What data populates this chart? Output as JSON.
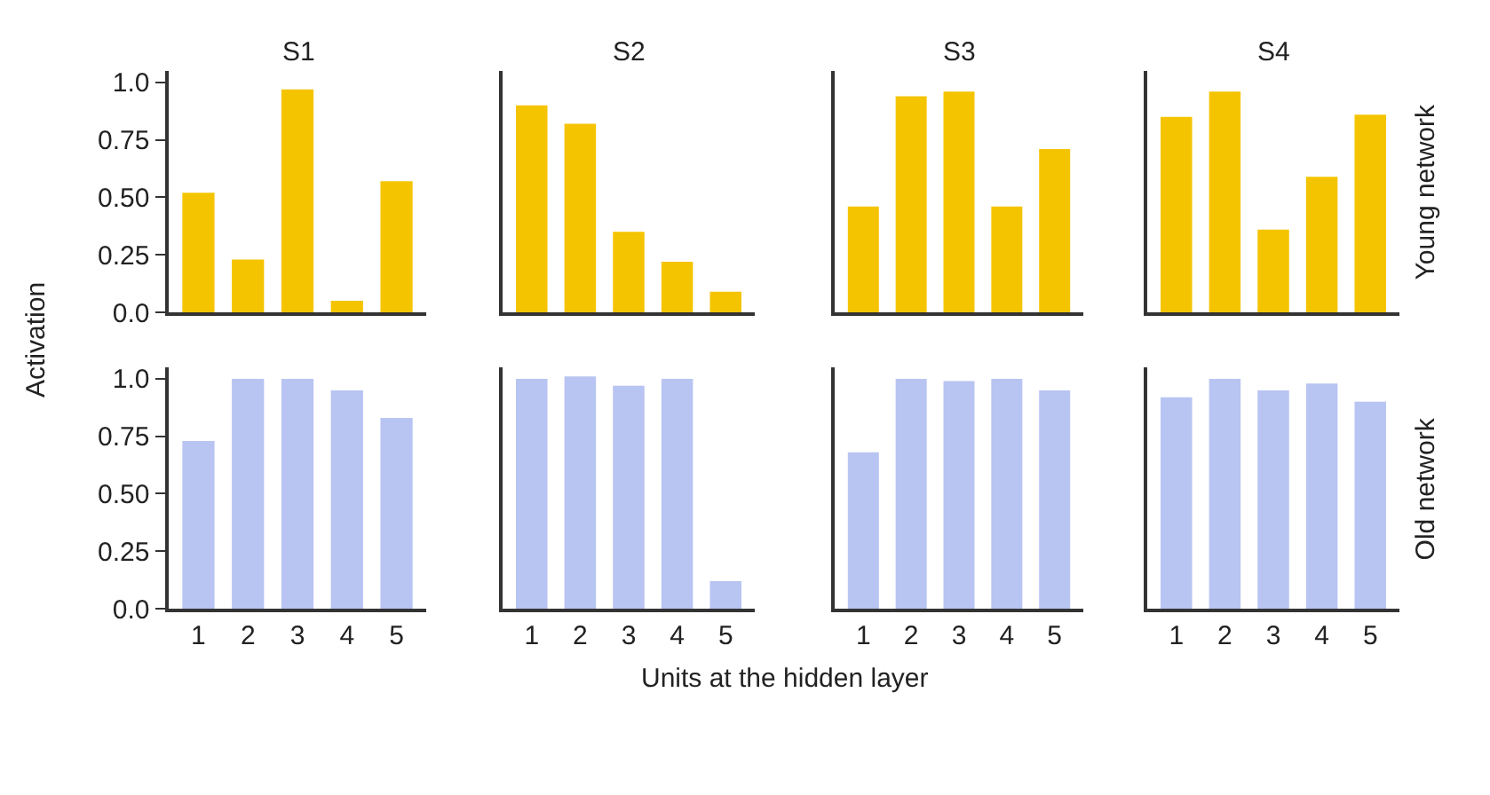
{
  "chart_data": [
    {
      "type": "bar",
      "title": "S1",
      "ylabel": "Activation",
      "categories": [
        "1",
        "2",
        "3",
        "4",
        "5"
      ],
      "values": [
        0.52,
        0.23,
        0.97,
        0.05,
        0.57
      ],
      "color": "#f5c400",
      "ylim": [
        0,
        1.05
      ],
      "yticks": [
        {
          "value": 0,
          "label": "0.0"
        },
        {
          "value": 0.25,
          "label": "0.25"
        },
        {
          "value": 0.5,
          "label": "0.50"
        },
        {
          "value": 0.75,
          "label": "0.75"
        },
        {
          "value": 1,
          "label": "1.0"
        }
      ],
      "tick_labels": "y"
    },
    {
      "type": "bar",
      "title": "S2",
      "categories": [
        "1",
        "2",
        "3",
        "4",
        "5"
      ],
      "values": [
        0.9,
        0.82,
        0.35,
        0.22,
        0.09
      ],
      "color": "#f5c400",
      "ylim": [
        0,
        1.05
      ],
      "tick_labels": false
    },
    {
      "type": "bar",
      "title": "S3",
      "categories": [
        "1",
        "2",
        "3",
        "4",
        "5"
      ],
      "values": [
        0.46,
        0.94,
        0.96,
        0.46,
        0.71
      ],
      "color": "#f5c400",
      "ylim": [
        0,
        1.05
      ],
      "tick_labels": false
    },
    {
      "type": "bar",
      "title": "S4",
      "y2label": "Young network",
      "categories": [
        "1",
        "2",
        "3",
        "4",
        "5"
      ],
      "values": [
        0.85,
        0.96,
        0.36,
        0.59,
        0.86
      ],
      "color": "#f5c400",
      "ylim": [
        0,
        1.05
      ],
      "tick_labels": false
    },
    {
      "type": "bar",
      "categories": [
        "1",
        "2",
        "3",
        "4",
        "5"
      ],
      "values": [
        0.73,
        1.0,
        1.0,
        0.95,
        0.83
      ],
      "color": "#b8c4f2",
      "ylim": [
        0,
        1.05
      ],
      "yticks": [
        {
          "value": 0,
          "label": "0.0"
        },
        {
          "value": 0.25,
          "label": "0.25"
        },
        {
          "value": 0.5,
          "label": "0.50"
        },
        {
          "value": 0.75,
          "label": "0.75"
        },
        {
          "value": 1,
          "label": "1.0"
        }
      ]
    },
    {
      "type": "bar",
      "xlabel": "Units at the hidden layer",
      "categories": [
        "1",
        "2",
        "3",
        "4",
        "5"
      ],
      "values": [
        1.0,
        1.01,
        0.97,
        1.0,
        0.12
      ],
      "color": "#b8c4f2",
      "ylim": [
        0,
        1.05
      ],
      "tick_labels": "x"
    },
    {
      "type": "bar",
      "categories": [
        "1",
        "2",
        "3",
        "4",
        "5"
      ],
      "values": [
        0.68,
        1.0,
        0.99,
        1.0,
        0.95
      ],
      "color": "#b8c4f2",
      "ylim": [
        0,
        1.05
      ],
      "tick_labels": "x"
    },
    {
      "type": "bar",
      "y2label": "Old network",
      "categories": [
        "1",
        "2",
        "3",
        "4",
        "5"
      ],
      "values": [
        0.92,
        1.0,
        0.95,
        0.98,
        0.9
      ],
      "color": "#b8c4f2",
      "ylim": [
        0,
        1.05
      ],
      "tick_labels": "x"
    }
  ]
}
